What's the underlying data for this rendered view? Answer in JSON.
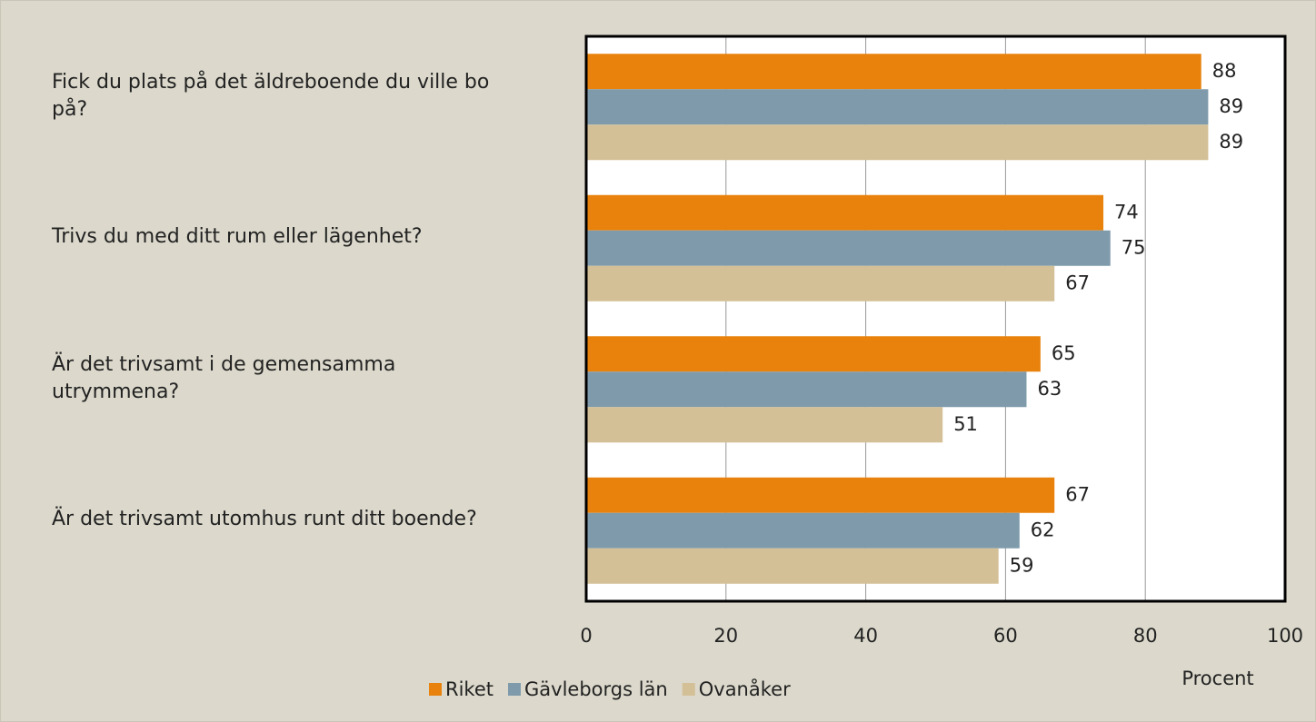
{
  "chart_data": {
    "type": "bar",
    "orientation": "horizontal",
    "categories": [
      "Fick du plats på det äldreboende du ville bo på?",
      "Trivs du med ditt rum eller lägenhet?",
      "Är det trivsamt i de gemensamma utrymmena?",
      "Är det trivsamt utomhus runt ditt boende?"
    ],
    "series": [
      {
        "name": "Riket",
        "color": "#e8820c",
        "values": [
          88,
          74,
          65,
          67
        ]
      },
      {
        "name": "Gävleborgs län",
        "color": "#7f9bab",
        "values": [
          89,
          75,
          63,
          62
        ]
      },
      {
        "name": "Ovanåker",
        "color": "#d4c097",
        "values": [
          89,
          67,
          51,
          59
        ]
      }
    ],
    "xlabel": "Procent",
    "xlim": [
      0,
      100
    ],
    "xticks": [
      0,
      20,
      40,
      60,
      80,
      100
    ],
    "grid": true,
    "legend": "bottom"
  }
}
